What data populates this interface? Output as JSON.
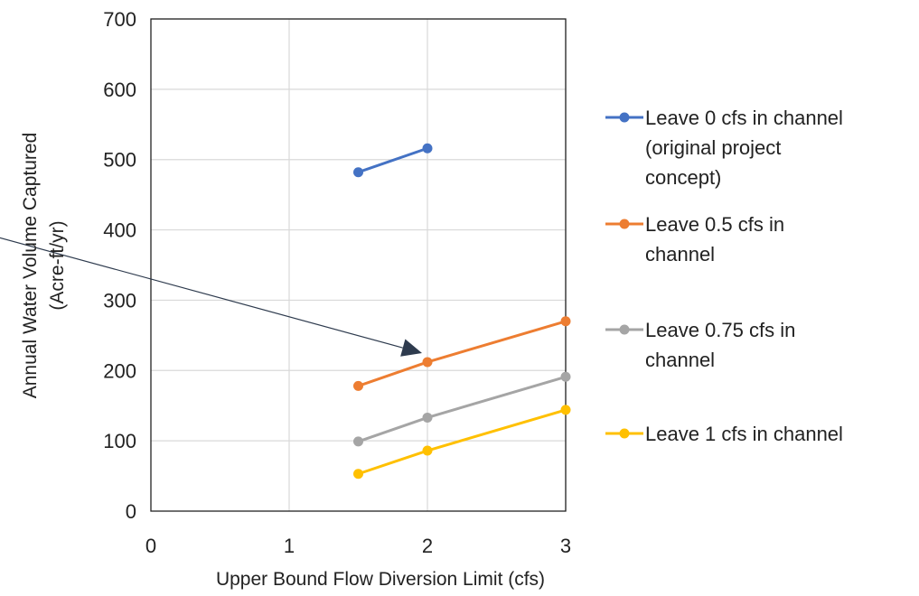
{
  "chart_data": {
    "type": "line",
    "title": "",
    "xlabel": "Upper Bound Flow Diversion Limit (cfs)",
    "ylabel": [
      "Annual Water Volume Captured",
      "(Acre-ft/yr)"
    ],
    "xlim": [
      0,
      3
    ],
    "ylim": [
      0,
      700
    ],
    "x_ticks": [
      "0",
      "1",
      "2",
      "3"
    ],
    "y_ticks": [
      "0",
      "100",
      "200",
      "300",
      "400",
      "500",
      "600",
      "700"
    ],
    "grid": true,
    "legend_position": "right",
    "series": [
      {
        "name": [
          "Leave 0 cfs in channel",
          "(original project",
          "concept)"
        ],
        "color": "#4472C4",
        "x": [
          1.5,
          2
        ],
        "y": [
          482,
          516
        ]
      },
      {
        "name": [
          "Leave 0.5 cfs in",
          "channel"
        ],
        "color": "#ED7D31",
        "x": [
          1.5,
          2,
          3
        ],
        "y": [
          178,
          212,
          270
        ]
      },
      {
        "name": [
          "Leave 0.75 cfs in",
          "channel"
        ],
        "color": "#A5A5A5",
        "x": [
          1.5,
          2,
          3
        ],
        "y": [
          99,
          133,
          191
        ]
      },
      {
        "name": [
          "Leave 1 cfs in channel"
        ],
        "color": "#FFC000",
        "x": [
          1.5,
          2,
          3
        ],
        "y": [
          53,
          86,
          144
        ]
      }
    ],
    "annotation": {
      "type": "arrow",
      "color": "#2E3B4E",
      "from": [
        0.25,
        375
      ],
      "to": [
        2.0,
        212
      ]
    }
  }
}
